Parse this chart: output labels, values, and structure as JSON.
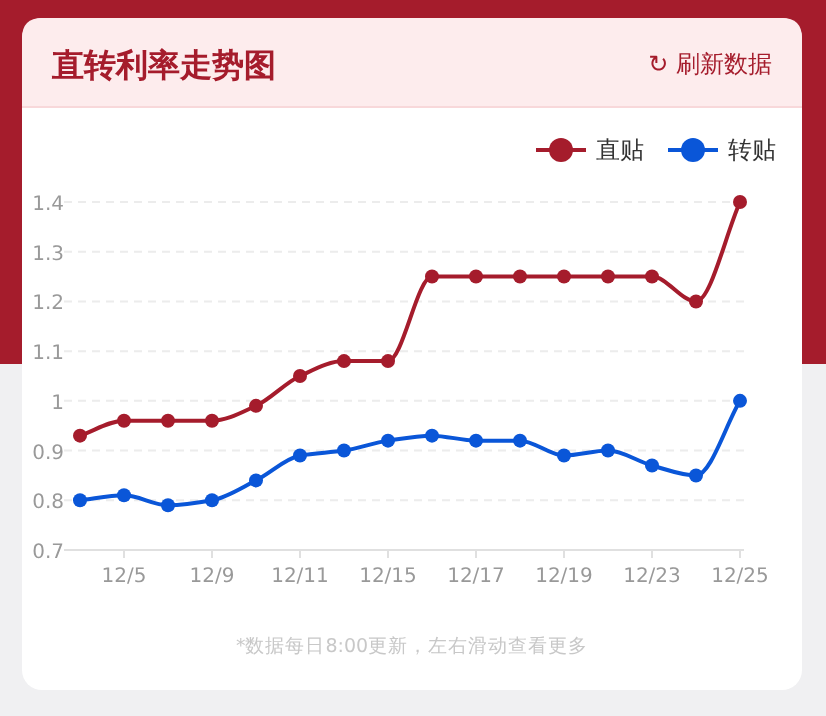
{
  "chart_data": {
    "type": "line",
    "title": "直转利率走势图",
    "annotations": [
      "↻ 刷新数据",
      "*数据每日8:00更新，左右滑动查看更多"
    ],
    "categories": [
      null,
      "12/5",
      null,
      "12/9",
      null,
      "12/11",
      null,
      "12/15",
      null,
      "12/17",
      null,
      "12/19",
      null,
      "12/23",
      null,
      "12/25"
    ],
    "series": [
      {
        "name": "直贴",
        "color": "#a51c2c",
        "values": [
          0.93,
          0.96,
          0.96,
          0.96,
          0.99,
          1.05,
          1.08,
          1.08,
          1.25,
          1.25,
          1.25,
          1.25,
          1.25,
          1.25,
          1.2,
          1.4
        ]
      },
      {
        "name": "转贴",
        "color": "#0a56d8",
        "values": [
          0.8,
          0.81,
          0.79,
          0.8,
          0.84,
          0.89,
          0.9,
          0.92,
          0.93,
          0.92,
          0.92,
          0.89,
          0.9,
          0.87,
          0.85,
          1.0
        ]
      }
    ],
    "ylim": [
      0.7,
      1.4
    ],
    "yticks": [
      0.7,
      0.8,
      0.9,
      1,
      1.1,
      1.2,
      1.3,
      1.4
    ],
    "grid": "y",
    "legend": "top right",
    "marker": "circle",
    "line_style": "solid"
  }
}
